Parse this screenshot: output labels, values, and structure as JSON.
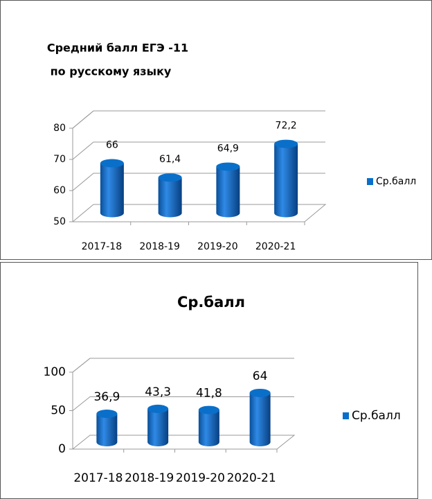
{
  "chart_data": [
    {
      "type": "bar3d",
      "title": [
        "Средний балл ЕГЭ -11",
        "по русскому языку"
      ],
      "categories": [
        "2017-18",
        "2018-19",
        "2019-20",
        "2020-21"
      ],
      "series": [
        {
          "name": "Ср.балл",
          "color": "#0a6fc9",
          "values": [
            66,
            61.4,
            64.9,
            72.2
          ],
          "value_labels": [
            "66",
            "61,4",
            "64,9",
            "72,2"
          ]
        }
      ],
      "ylim": [
        50,
        80
      ],
      "yticks": [
        50,
        60,
        70,
        80
      ],
      "grid": true,
      "legend": "right"
    },
    {
      "type": "bar3d",
      "title": [
        "Ср.балл"
      ],
      "categories": [
        "2017-18",
        "2018-19",
        "2019-20",
        "2020-21"
      ],
      "series": [
        {
          "name": "Ср.балл",
          "color": "#0a6fc9",
          "values": [
            36.9,
            43.3,
            41.8,
            64
          ],
          "value_labels": [
            "36,9",
            "43,3",
            "41,8",
            "64"
          ]
        }
      ],
      "ylim": [
        0,
        100
      ],
      "yticks": [
        0,
        50,
        100
      ],
      "grid": true,
      "legend": "right"
    }
  ]
}
